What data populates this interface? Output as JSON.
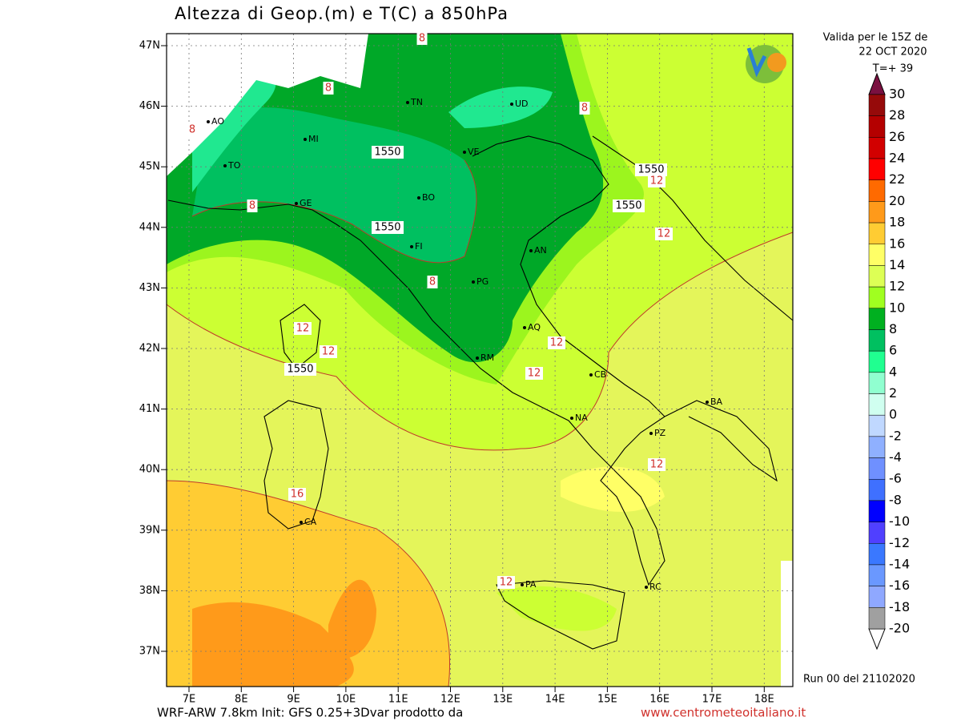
{
  "title": "Altezza di Geop.(m) e T(C) a 850hPa",
  "valid": [
    "Valida per le 15Z de",
    "22 OCT 2020",
    "T=+ 39"
  ],
  "lat_labels": [
    "47N",
    "46N",
    "45N",
    "44N",
    "43N",
    "42N",
    "41N",
    "40N",
    "39N",
    "38N",
    "37N"
  ],
  "lon_labels": [
    "7E",
    "8E",
    "9E",
    "10E",
    "11E",
    "12E",
    "13E",
    "14E",
    "15E",
    "16E",
    "17E",
    "18E"
  ],
  "cities": [
    "AO",
    "MI",
    "TO",
    "TN",
    "UD",
    "VE",
    "BO",
    "GE",
    "FI",
    "AN",
    "PG",
    "AQ",
    "RM",
    "CB",
    "BA",
    "NA",
    "PZ",
    "CA",
    "PA",
    "RC"
  ],
  "contour_labels": [
    "8",
    "8",
    "8",
    "8",
    "8",
    "8",
    "1550",
    "1550",
    "1550",
    "1550",
    "1550",
    "12",
    "12",
    "12",
    "12",
    "12",
    "12",
    "12",
    "12",
    "16"
  ],
  "colorbar": {
    "levels": [
      30,
      28,
      26,
      24,
      22,
      20,
      18,
      16,
      14,
      12,
      10,
      8,
      6,
      4,
      2,
      0,
      -2,
      -4,
      -6,
      -8,
      -10,
      -12,
      -14,
      -16,
      -18,
      -20
    ],
    "colors": [
      "#960a0a",
      "#b40000",
      "#d20000",
      "#ff0000",
      "#ff6a00",
      "#ff9a1a",
      "#ffcc33",
      "#ffff66",
      "#ddff55",
      "#a0ff20",
      "#00b020",
      "#00c060",
      "#20ff90",
      "#90ffd0",
      "#d0fff0",
      "#c0d8ff",
      "#8fb0ff",
      "#6f90ff",
      "#3f70ff",
      "#0000ff",
      "#5040ff",
      "#3a78ff",
      "#6a98ff",
      "#8fa8ff",
      "#a0a0a0"
    ]
  },
  "run": "Run 00 del 21102020",
  "footer_left": "WRF-ARW 7.8km Init: GFS 0.25+3Dvar prodotto da",
  "footer_right": "www.centrometeoitaliano.it"
}
